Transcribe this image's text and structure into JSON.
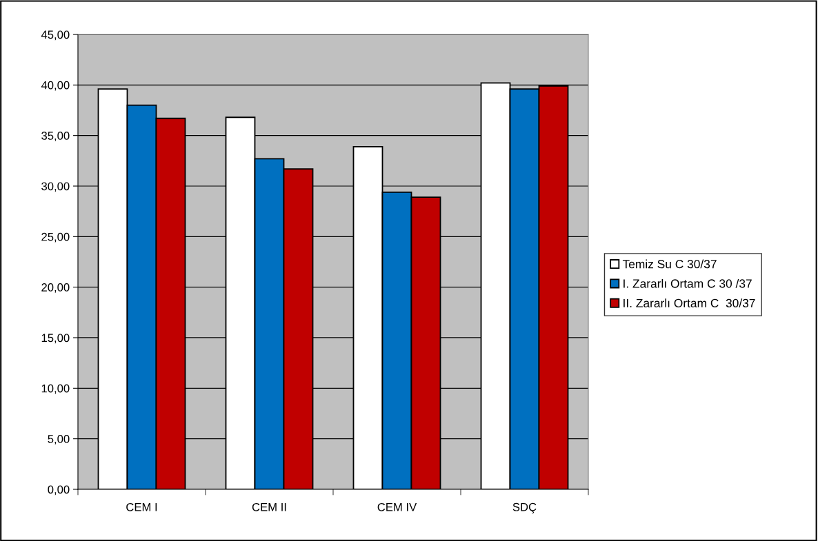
{
  "chart_data": {
    "type": "bar",
    "categories": [
      "CEM I",
      "CEM II",
      "CEM IV",
      "SDÇ"
    ],
    "series": [
      {
        "name": "Temiz Su C 30/37",
        "color": "#ffffff",
        "values": [
          39.6,
          36.8,
          33.9,
          40.2
        ]
      },
      {
        "name": "I. Zararlı Ortam C 30 /37",
        "color": "#0070c0",
        "values": [
          38.0,
          32.7,
          29.4,
          39.6
        ]
      },
      {
        "name": "II. Zararlı Ortam C  30/37",
        "color": "#c00000",
        "values": [
          36.7,
          31.7,
          28.9,
          39.9
        ]
      }
    ],
    "ylim": [
      0,
      45
    ],
    "yticks": [
      {
        "value": 0,
        "label": "0,00"
      },
      {
        "value": 5,
        "label": "5,00"
      },
      {
        "value": 10,
        "label": "10,00"
      },
      {
        "value": 15,
        "label": "15,00"
      },
      {
        "value": 20,
        "label": "20,00"
      },
      {
        "value": 25,
        "label": "25,00"
      },
      {
        "value": 30,
        "label": "30,00"
      },
      {
        "value": 35,
        "label": "35,00"
      },
      {
        "value": 40,
        "label": "40,00"
      },
      {
        "value": 45,
        "label": "45,00"
      }
    ],
    "grid": "y",
    "legend": "right"
  }
}
